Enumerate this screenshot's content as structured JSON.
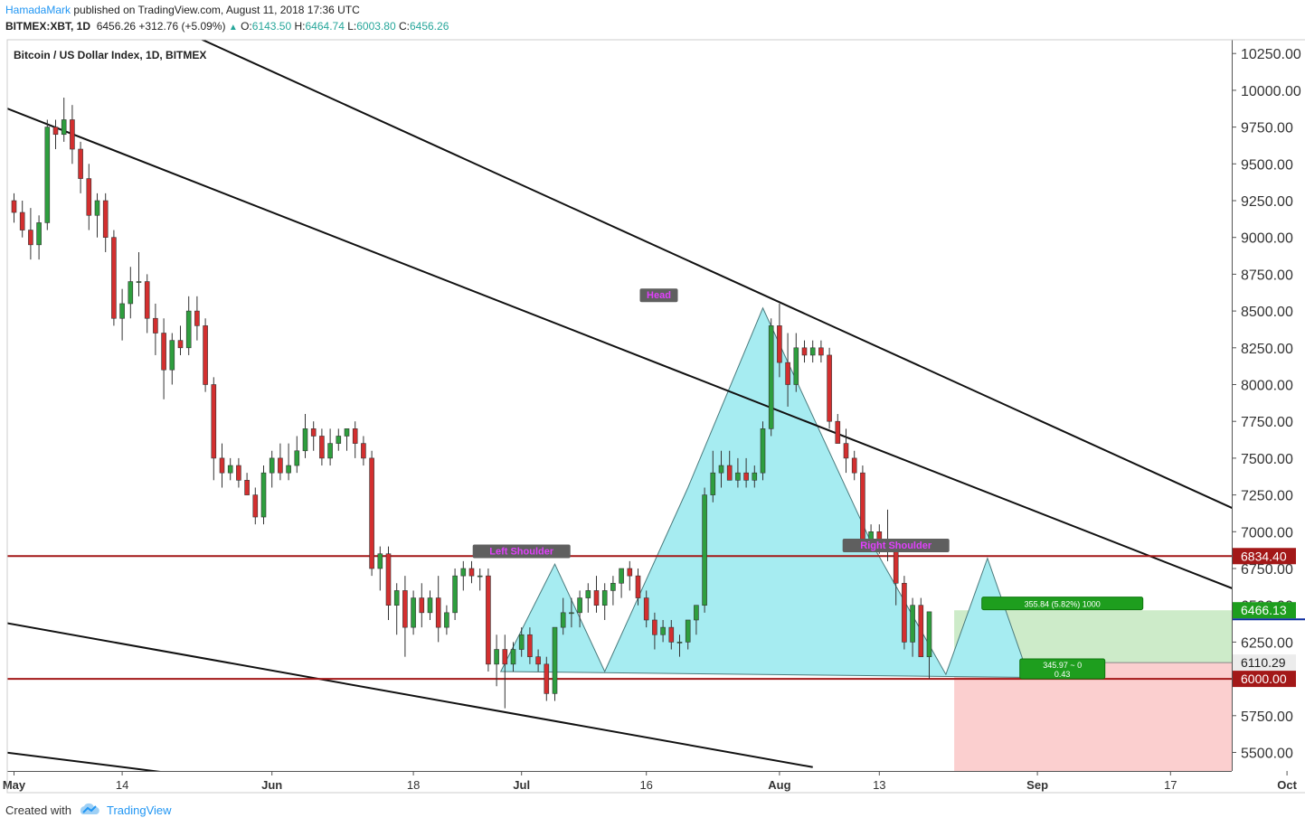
{
  "header": {
    "author": "HamadaMark",
    "published_text": "published on TradingView.com, August 11, 2018 17:36 UTC",
    "symbol": "BITMEX:XBT, 1D",
    "last": "6456.26",
    "change": "+312.76 (+5.09%)",
    "o_label": "O:",
    "o": "6143.50",
    "h_label": "H:",
    "h": "6464.74",
    "l_label": "L:",
    "l": "6003.80",
    "c_label": "C:",
    "c": "6456.26"
  },
  "footer": {
    "created_with": "Created with",
    "brand": "TradingView"
  },
  "colors": {
    "up": "#2e9e3e",
    "down": "#d32f2f",
    "pattern_fill": "#a6ecf1",
    "target_zone": "#cdebc9",
    "stop_zone": "#fbcfcf",
    "level_line": "#a31818"
  },
  "chart_data": {
    "type": "candlestick",
    "title": "Bitcoin / US Dollar Index, 1D, BITMEX",
    "y_ticks": [
      "10250.00",
      "10000.00",
      "9750.00",
      "9500.00",
      "9250.00",
      "9000.00",
      "8750.00",
      "8500.00",
      "8250.00",
      "8000.00",
      "7750.00",
      "7500.00",
      "7250.00",
      "7000.00",
      "6750.00",
      "6500.00",
      "6250.00",
      "6000.00",
      "5750.00",
      "5500.00"
    ],
    "ylim": [
      5400,
      10400
    ],
    "x_ticks": [
      {
        "label": "May",
        "date": "2018-05-01",
        "bold": true
      },
      {
        "label": "14",
        "date": "2018-05-14",
        "bold": false
      },
      {
        "label": "Jun",
        "date": "2018-06-01",
        "bold": true
      },
      {
        "label": "18",
        "date": "2018-06-18",
        "bold": false
      },
      {
        "label": "Jul",
        "date": "2018-07-01",
        "bold": true
      },
      {
        "label": "16",
        "date": "2018-07-16",
        "bold": false
      },
      {
        "label": "Aug",
        "date": "2018-08-01",
        "bold": true
      },
      {
        "label": "13",
        "date": "2018-08-13",
        "bold": false
      },
      {
        "label": "Sep",
        "date": "2018-09-01",
        "bold": true
      },
      {
        "label": "17",
        "date": "2018-09-17",
        "bold": false
      },
      {
        "label": "Oct",
        "date": "2018-10-01",
        "bold": true
      }
    ],
    "start_date": "2018-05-01",
    "candles": [
      [
        9250,
        9300,
        9100,
        9170
      ],
      [
        9170,
        9250,
        9000,
        9050
      ],
      [
        9050,
        9200,
        8850,
        8950
      ],
      [
        8950,
        9150,
        8850,
        9100
      ],
      [
        9100,
        9800,
        9050,
        9750
      ],
      [
        9750,
        9800,
        9600,
        9700
      ],
      [
        9700,
        9950,
        9650,
        9800
      ],
      [
        9800,
        9900,
        9500,
        9600
      ],
      [
        9600,
        9650,
        9300,
        9400
      ],
      [
        9400,
        9500,
        9050,
        9150
      ],
      [
        9150,
        9300,
        9000,
        9250
      ],
      [
        9250,
        9300,
        8900,
        9000
      ],
      [
        9000,
        9050,
        8400,
        8450
      ],
      [
        8450,
        8650,
        8300,
        8550
      ],
      [
        8550,
        8800,
        8450,
        8700
      ],
      [
        8700,
        8900,
        8600,
        8700
      ],
      [
        8700,
        8750,
        8350,
        8450
      ],
      [
        8450,
        8550,
        8200,
        8350
      ],
      [
        8350,
        8450,
        7900,
        8100
      ],
      [
        8100,
        8350,
        8000,
        8300
      ],
      [
        8300,
        8400,
        8200,
        8250
      ],
      [
        8250,
        8600,
        8200,
        8500
      ],
      [
        8500,
        8600,
        8300,
        8400
      ],
      [
        8400,
        8450,
        7950,
        8000
      ],
      [
        8000,
        8050,
        7350,
        7500
      ],
      [
        7500,
        7600,
        7300,
        7400
      ],
      [
        7400,
        7500,
        7350,
        7450
      ],
      [
        7450,
        7500,
        7300,
        7350
      ],
      [
        7350,
        7400,
        7250,
        7250
      ],
      [
        7250,
        7300,
        7050,
        7100
      ],
      [
        7100,
        7450,
        7050,
        7400
      ],
      [
        7400,
        7550,
        7300,
        7500
      ],
      [
        7500,
        7600,
        7350,
        7400
      ],
      [
        7400,
        7600,
        7350,
        7450
      ],
      [
        7450,
        7650,
        7400,
        7550
      ],
      [
        7550,
        7800,
        7500,
        7700
      ],
      [
        7700,
        7750,
        7550,
        7650
      ],
      [
        7650,
        7700,
        7450,
        7500
      ],
      [
        7500,
        7700,
        7450,
        7600
      ],
      [
        7600,
        7700,
        7550,
        7650
      ],
      [
        7650,
        7700,
        7550,
        7700
      ],
      [
        7700,
        7750,
        7500,
        7600
      ],
      [
        7600,
        7650,
        7450,
        7500
      ],
      [
        7500,
        7550,
        6700,
        6750
      ],
      [
        6750,
        6900,
        6600,
        6850
      ],
      [
        6850,
        6900,
        6400,
        6500
      ],
      [
        6500,
        6650,
        6300,
        6600
      ],
      [
        6600,
        6700,
        6150,
        6350
      ],
      [
        6350,
        6600,
        6300,
        6550
      ],
      [
        6550,
        6650,
        6350,
        6450
      ],
      [
        6450,
        6600,
        6400,
        6550
      ],
      [
        6550,
        6700,
        6250,
        6350
      ],
      [
        6350,
        6500,
        6300,
        6450
      ],
      [
        6450,
        6750,
        6400,
        6700
      ],
      [
        6700,
        6800,
        6600,
        6750
      ],
      [
        6750,
        6800,
        6650,
        6700
      ],
      [
        6700,
        6750,
        6600,
        6700
      ],
      [
        6700,
        6750,
        6050,
        6100
      ],
      [
        6100,
        6300,
        5950,
        6200
      ],
      [
        6200,
        6300,
        5800,
        6100
      ],
      [
        6100,
        6250,
        6050,
        6200
      ],
      [
        6200,
        6350,
        6150,
        6300
      ],
      [
        6300,
        6350,
        6100,
        6150
      ],
      [
        6150,
        6200,
        6050,
        6100
      ],
      [
        6100,
        6150,
        5850,
        5900
      ],
      [
        5900,
        6300,
        5850,
        6350
      ],
      [
        6350,
        6550,
        6300,
        6450
      ],
      [
        6450,
        6550,
        6350,
        6450
      ],
      [
        6450,
        6600,
        6350,
        6550
      ],
      [
        6550,
        6650,
        6450,
        6600
      ],
      [
        6600,
        6700,
        6450,
        6500
      ],
      [
        6500,
        6650,
        6400,
        6600
      ],
      [
        6600,
        6700,
        6500,
        6650
      ],
      [
        6650,
        6750,
        6550,
        6750
      ],
      [
        6750,
        6800,
        6600,
        6700
      ],
      [
        6700,
        6750,
        6500,
        6550
      ],
      [
        6550,
        6600,
        6350,
        6400
      ],
      [
        6400,
        6450,
        6200,
        6300
      ],
      [
        6300,
        6400,
        6250,
        6350
      ],
      [
        6350,
        6400,
        6200,
        6250
      ],
      [
        6250,
        6300,
        6150,
        6250
      ],
      [
        6250,
        6350,
        6200,
        6400
      ],
      [
        6400,
        6500,
        6300,
        6500
      ],
      [
        6500,
        7300,
        6450,
        7250
      ],
      [
        7250,
        7550,
        7200,
        7400
      ],
      [
        7400,
        7550,
        7300,
        7450
      ],
      [
        7450,
        7550,
        7350,
        7350
      ],
      [
        7350,
        7500,
        7300,
        7400
      ],
      [
        7400,
        7500,
        7300,
        7350
      ],
      [
        7350,
        7450,
        7300,
        7400
      ],
      [
        7400,
        7750,
        7350,
        7700
      ],
      [
        7700,
        8450,
        7650,
        8400
      ],
      [
        8400,
        8550,
        8050,
        8150
      ],
      [
        8150,
        8350,
        7850,
        8000
      ],
      [
        8000,
        8350,
        7950,
        8250
      ],
      [
        8250,
        8300,
        8150,
        8200
      ],
      [
        8200,
        8300,
        8150,
        8250
      ],
      [
        8250,
        8300,
        8150,
        8200
      ],
      [
        8200,
        8250,
        7700,
        7750
      ],
      [
        7750,
        7800,
        7600,
        7600
      ],
      [
        7600,
        7700,
        7400,
        7500
      ],
      [
        7500,
        7550,
        7350,
        7400
      ],
      [
        7400,
        7450,
        6900,
        6950
      ],
      [
        6950,
        7050,
        6900,
        7000
      ],
      [
        7000,
        7050,
        6850,
        6950
      ],
      [
        6950,
        7150,
        6800,
        6900
      ],
      [
        6900,
        6950,
        6500,
        6650
      ],
      [
        6650,
        6700,
        6200,
        6250
      ],
      [
        6250,
        6550,
        6150,
        6500
      ],
      [
        6500,
        6550,
        6150,
        6150
      ],
      [
        6150,
        6450,
        6000,
        6456
      ]
    ],
    "levels": [
      {
        "label": "6834.40",
        "value": 6834.4
      },
      {
        "label": "6000.00",
        "value": 6000
      }
    ],
    "price_tags": [
      {
        "label": "6466.13",
        "value": 6466.13
      },
      {
        "label": "6110.29",
        "value": 6110.29
      }
    ],
    "pattern_labels": {
      "left_shoulder": "Left Shoulder",
      "head": "Head",
      "right_shoulder": "Right Shoulder"
    },
    "position_labels": {
      "target_line1": "355.84 (5.82%) 1000",
      "stop_line1": "345.97 ~ 0",
      "stop_line2": "0.43"
    }
  }
}
